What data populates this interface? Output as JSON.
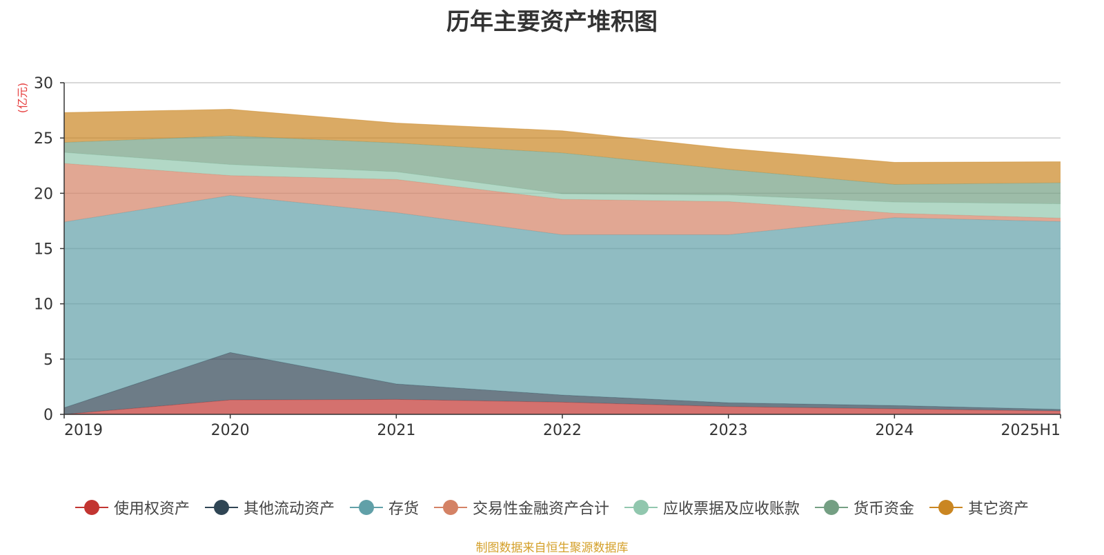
{
  "chart_data": {
    "type": "area",
    "title": "历年主要资产堆积图",
    "ylabel": "(亿元)",
    "xlabel": "",
    "categories": [
      "2019",
      "2020",
      "2021",
      "2022",
      "2023",
      "2024",
      "2025H1"
    ],
    "ylim": [
      0,
      30
    ],
    "yticks": [
      0,
      5,
      10,
      15,
      20,
      25,
      30
    ],
    "stacked": true,
    "grid": true,
    "legend_position": "bottom",
    "series": [
      {
        "name": "使用权资产",
        "color": "#c23531",
        "values": [
          0.0,
          1.3,
          1.35,
          1.1,
          0.7,
          0.5,
          0.3
        ]
      },
      {
        "name": "其他流动资产",
        "color": "#2f4554",
        "values": [
          0.6,
          4.3,
          1.4,
          0.65,
          0.35,
          0.3,
          0.15
        ]
      },
      {
        "name": "存货",
        "color": "#61a0a8",
        "values": [
          16.8,
          14.2,
          15.5,
          14.5,
          15.2,
          17.0,
          17.0
        ]
      },
      {
        "name": "交易性金融资产合计",
        "color": "#d48265",
        "values": [
          5.3,
          1.8,
          3.0,
          3.2,
          3.0,
          0.4,
          0.3
        ]
      },
      {
        "name": "应收票据及应收账款",
        "color": "#91c7ae",
        "values": [
          1.0,
          1.0,
          0.7,
          0.5,
          0.6,
          1.0,
          1.3
        ]
      },
      {
        "name": "货币资金",
        "color": "#749f83",
        "values": [
          0.9,
          2.6,
          2.6,
          3.7,
          2.3,
          1.6,
          1.9
        ]
      },
      {
        "name": "其它资产",
        "color": "#ca8622",
        "values": [
          2.7,
          2.4,
          1.8,
          2.0,
          1.9,
          2.0,
          1.9
        ]
      }
    ]
  },
  "source_note": "制图数据来自恒生聚源数据库"
}
